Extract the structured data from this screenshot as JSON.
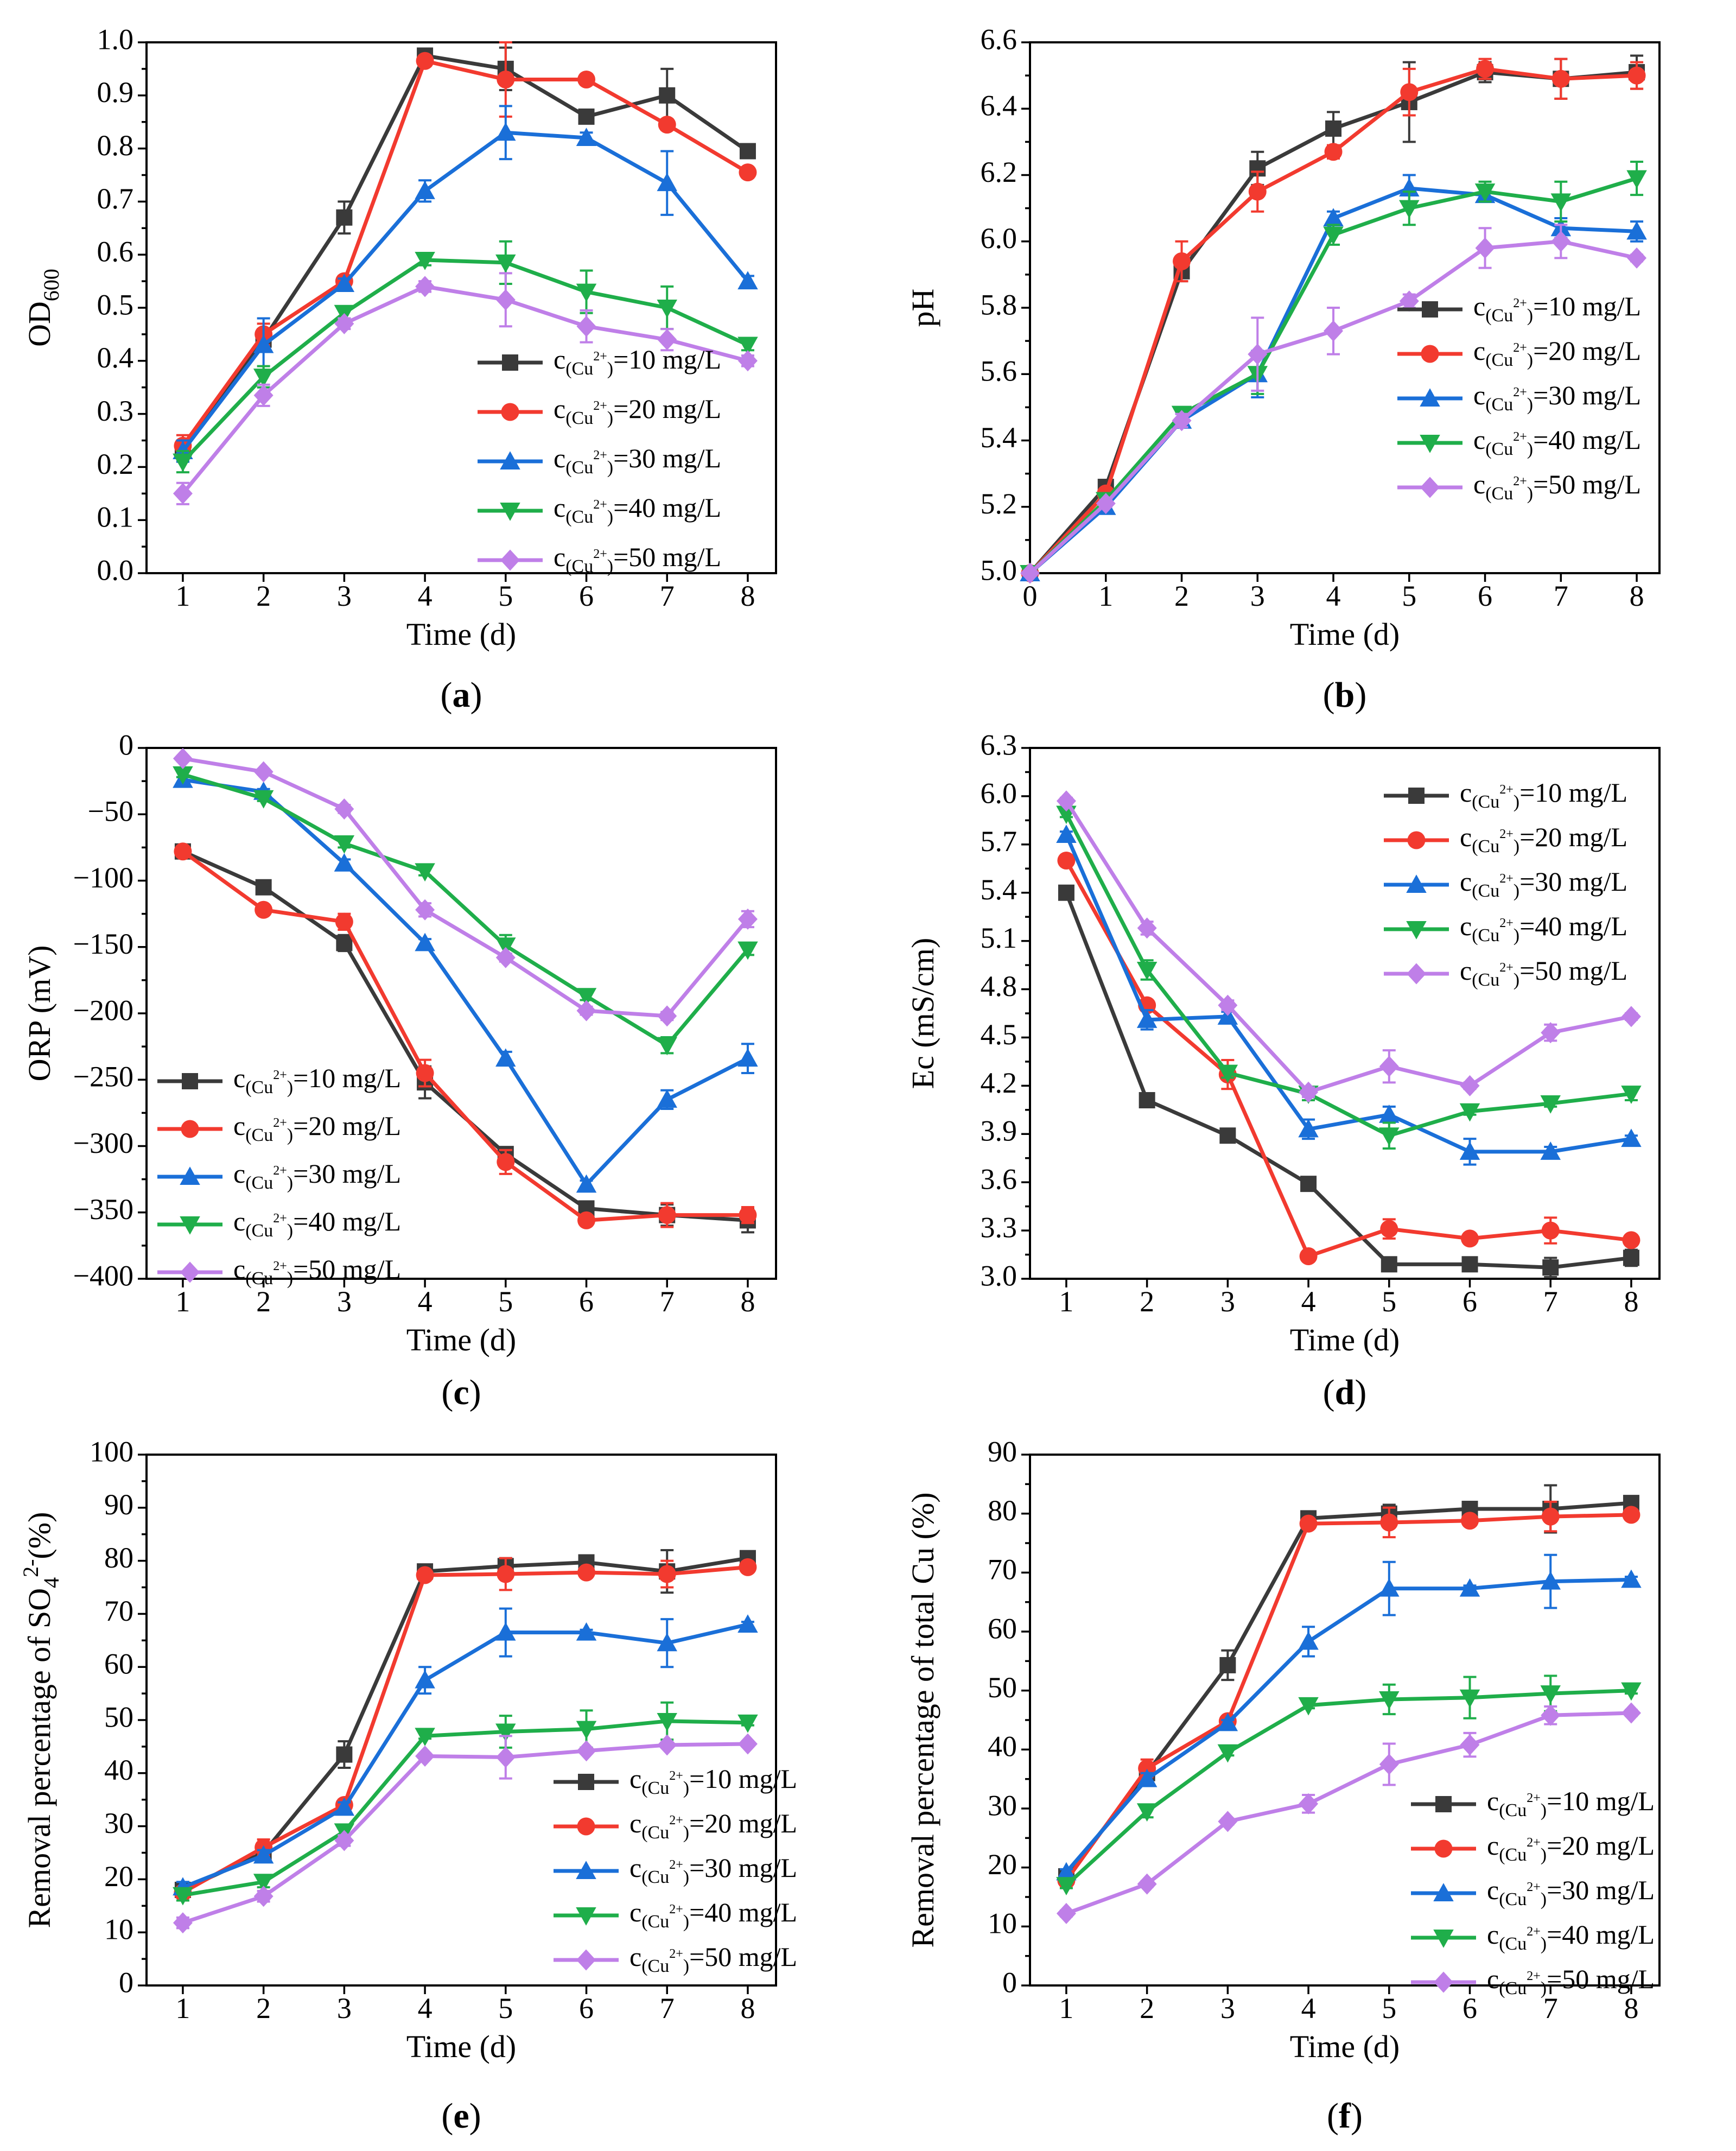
{
  "figure": {
    "legend_labels": {
      "prefix": "c",
      "subscript_base": "(Cu",
      "superscript": "2+",
      "subscript_close": ")",
      "concentrations": [
        "=10 mg/L",
        "=20 mg/L",
        "=30 mg/L",
        "=40 mg/L",
        "=50 mg/L"
      ]
    },
    "series_colors": [
      "#3a3a3a",
      "#f23a2f",
      "#1a6fd8",
      "#1fae4a",
      "#bf7fe8"
    ],
    "series_markers": [
      "square-icon",
      "circle-icon",
      "triangle-up-icon",
      "triangle-down-icon",
      "diamond-icon"
    ]
  },
  "chart_data": [
    {
      "id": "a",
      "type": "line",
      "panel_label": "a",
      "xlabel": "Time (d)",
      "ylabel": {
        "main": "OD",
        "sub": "600"
      },
      "x": [
        1,
        2,
        3,
        4,
        5,
        6,
        7,
        8
      ],
      "xticks": [
        1,
        2,
        3,
        4,
        5,
        6,
        7,
        8
      ],
      "xlim": [
        0.55,
        8.35
      ],
      "ylim": [
        0,
        1.0
      ],
      "yticks": [
        0.0,
        0.1,
        0.2,
        0.3,
        0.4,
        0.5,
        0.6,
        0.7,
        0.8,
        0.9,
        1.0
      ],
      "ytick_labels": [
        "0.0",
        "0.1",
        "0.2",
        "0.3",
        "0.4",
        "0.5",
        "0.6",
        "0.7",
        "0.8",
        "0.9",
        "1.0"
      ],
      "legend_position": "lower-right",
      "series": [
        {
          "name": "10 mg/L",
          "values": [
            0.23,
            0.44,
            0.67,
            0.975,
            0.95,
            0.86,
            0.9,
            0.795
          ],
          "errors": [
            0.02,
            0.02,
            0.03,
            0.008,
            0.04,
            0.01,
            0.05,
            0.01
          ]
        },
        {
          "name": "20 mg/L",
          "values": [
            0.24,
            0.45,
            0.55,
            0.965,
            0.93,
            0.93,
            0.845,
            0.755
          ],
          "errors": [
            0.02,
            0.02,
            0.01,
            0.01,
            0.07,
            0.01,
            0.01,
            0.01
          ]
        },
        {
          "name": "30 mg/L",
          "values": [
            0.23,
            0.43,
            0.545,
            0.72,
            0.83,
            0.82,
            0.735,
            0.55
          ],
          "errors": [
            0.02,
            0.05,
            0.01,
            0.02,
            0.05,
            0.01,
            0.06,
            0.01
          ]
        },
        {
          "name": "40 mg/L",
          "values": [
            0.21,
            0.37,
            0.49,
            0.59,
            0.585,
            0.53,
            0.5,
            0.43
          ],
          "errors": [
            0.02,
            0.02,
            0.01,
            0.01,
            0.04,
            0.04,
            0.04,
            0.01
          ]
        },
        {
          "name": "50 mg/L",
          "values": [
            0.15,
            0.335,
            0.47,
            0.54,
            0.515,
            0.465,
            0.44,
            0.4
          ],
          "errors": [
            0.02,
            0.02,
            0.01,
            0.01,
            0.05,
            0.03,
            0.02,
            0.01
          ]
        }
      ]
    },
    {
      "id": "b",
      "type": "line",
      "panel_label": "b",
      "xlabel": "Time (d)",
      "ylabel": {
        "main": "pH",
        "sub": ""
      },
      "x": [
        0,
        1,
        2,
        3,
        4,
        5,
        6,
        7,
        8
      ],
      "xticks": [
        0,
        1,
        2,
        3,
        4,
        5,
        6,
        7,
        8
      ],
      "xlim": [
        0,
        8.3
      ],
      "ylim": [
        5.0,
        6.6
      ],
      "yticks": [
        5.0,
        5.2,
        5.4,
        5.6,
        5.8,
        6.0,
        6.2,
        6.4,
        6.6
      ],
      "ytick_labels": [
        "5.0",
        "5.2",
        "5.4",
        "5.6",
        "5.8",
        "6.0",
        "6.2",
        "6.4",
        "6.6"
      ],
      "legend_position": "lower-right",
      "series": [
        {
          "name": "10 mg/L",
          "values": [
            5.0,
            5.26,
            5.91,
            6.22,
            6.34,
            6.42,
            6.51,
            6.49,
            6.51
          ],
          "errors": [
            0,
            0.01,
            0.03,
            0.05,
            0.05,
            0.12,
            0.03,
            0.06,
            0.05
          ]
        },
        {
          "name": "20 mg/L",
          "values": [
            5.0,
            5.24,
            5.94,
            6.15,
            6.27,
            6.45,
            6.52,
            6.49,
            6.5
          ],
          "errors": [
            0,
            0.01,
            0.06,
            0.06,
            0.02,
            0.07,
            0.03,
            0.06,
            0.04
          ]
        },
        {
          "name": "30 mg/L",
          "values": [
            5.0,
            5.2,
            5.46,
            5.6,
            6.07,
            6.16,
            6.14,
            6.04,
            6.03
          ],
          "errors": [
            0,
            0.01,
            0.02,
            0.07,
            0.02,
            0.04,
            0.02,
            0.03,
            0.03
          ]
        },
        {
          "name": "40 mg/L",
          "values": [
            5.0,
            5.22,
            5.48,
            5.6,
            6.02,
            6.1,
            6.15,
            6.12,
            6.19
          ],
          "errors": [
            0,
            0.01,
            0.02,
            0.06,
            0.03,
            0.05,
            0.03,
            0.06,
            0.05
          ]
        },
        {
          "name": "50 mg/L",
          "values": [
            5.0,
            5.21,
            5.46,
            5.66,
            5.73,
            5.82,
            5.98,
            6.0,
            5.95
          ],
          "errors": [
            0,
            0.01,
            0.02,
            0.11,
            0.07,
            0.02,
            0.06,
            0.05,
            0.01
          ]
        }
      ]
    },
    {
      "id": "c",
      "type": "line",
      "panel_label": "c",
      "xlabel": "Time (d)",
      "ylabel": {
        "main": "ORP (mV)",
        "sub": ""
      },
      "x": [
        1,
        2,
        3,
        4,
        5,
        6,
        7,
        8
      ],
      "xticks": [
        1,
        2,
        3,
        4,
        5,
        6,
        7,
        8
      ],
      "xlim": [
        0.55,
        8.35
      ],
      "ylim": [
        -400,
        0
      ],
      "yticks": [
        0,
        -50,
        -100,
        -150,
        -200,
        -250,
        -300,
        -350,
        -400
      ],
      "ytick_labels": [
        "0",
        "-50",
        "-100",
        "-150",
        "-200",
        "-250",
        "-300",
        "-350",
        "-400"
      ],
      "legend_position": "lower-left",
      "series": [
        {
          "name": "10 mg/L",
          "values": [
            -78,
            -105,
            -147,
            -252,
            -306,
            -347,
            -352,
            -356
          ],
          "errors": [
            2,
            2,
            6,
            12,
            4,
            2,
            8,
            9
          ]
        },
        {
          "name": "20 mg/L",
          "values": [
            -78,
            -122,
            -131,
            -245,
            -312,
            -356,
            -352,
            -352
          ],
          "errors": [
            2,
            2,
            6,
            10,
            9,
            3,
            9,
            6
          ]
        },
        {
          "name": "30 mg/L",
          "values": [
            -24,
            -33,
            -87,
            -147,
            -234,
            -329,
            -265,
            -234
          ],
          "errors": [
            2,
            2,
            3,
            3,
            5,
            3,
            7,
            11
          ]
        },
        {
          "name": "40 mg/L",
          "values": [
            -20,
            -38,
            -72,
            -93,
            -149,
            -187,
            -224,
            -152
          ],
          "errors": [
            2,
            2,
            3,
            3,
            8,
            3,
            6,
            4
          ]
        },
        {
          "name": "50 mg/L",
          "values": [
            -8,
            -18,
            -46,
            -122,
            -158,
            -198,
            -202,
            -129
          ],
          "errors": [
            2,
            2,
            3,
            5,
            3,
            3,
            3,
            6
          ]
        }
      ]
    },
    {
      "id": "d",
      "type": "line",
      "panel_label": "d",
      "xlabel": "Time (d)",
      "ylabel": {
        "main": "Ec (mS/cm)",
        "sub": ""
      },
      "x": [
        1,
        2,
        3,
        4,
        5,
        6,
        7,
        8
      ],
      "xticks": [
        1,
        2,
        3,
        4,
        5,
        6,
        7,
        8
      ],
      "xlim": [
        0.55,
        8.35
      ],
      "ylim": [
        3.0,
        6.3
      ],
      "yticks": [
        3.0,
        3.3,
        3.6,
        3.9,
        4.2,
        4.5,
        4.8,
        5.1,
        5.4,
        5.7,
        6.0,
        6.3
      ],
      "ytick_labels": [
        "3.0",
        "3.3",
        "3.6",
        "3.9",
        "4.2",
        "4.5",
        "4.8",
        "5.1",
        "5.4",
        "5.7",
        "6.0",
        "6.3"
      ],
      "legend_position": "top-right",
      "series": [
        {
          "name": "10 mg/L",
          "values": [
            5.4,
            4.11,
            3.89,
            3.59,
            3.09,
            3.09,
            3.07,
            3.13
          ],
          "errors": [
            0.02,
            0.02,
            0.02,
            0.02,
            0.02,
            0.02,
            0.06,
            0.05
          ]
        },
        {
          "name": "20 mg/L",
          "values": [
            5.6,
            4.7,
            4.27,
            3.14,
            3.31,
            3.25,
            3.3,
            3.24
          ],
          "errors": [
            0.02,
            0.02,
            0.09,
            0.02,
            0.06,
            0.02,
            0.08,
            0.03
          ]
        },
        {
          "name": "30 mg/L",
          "values": [
            5.76,
            4.61,
            4.63,
            3.93,
            4.02,
            3.79,
            3.79,
            3.87
          ],
          "errors": [
            0.02,
            0.06,
            0.03,
            0.06,
            0.05,
            0.08,
            0.03,
            0.02
          ]
        },
        {
          "name": "40 mg/L",
          "values": [
            5.89,
            4.92,
            4.28,
            4.15,
            3.89,
            4.04,
            4.09,
            4.15
          ],
          "errors": [
            0.02,
            0.06,
            0.03,
            0.04,
            0.08,
            0.02,
            0.02,
            0.04
          ]
        },
        {
          "name": "50 mg/L",
          "values": [
            5.97,
            5.18,
            4.7,
            4.16,
            4.32,
            4.2,
            4.53,
            4.63
          ],
          "errors": [
            0.02,
            0.04,
            0.03,
            0.03,
            0.1,
            0.02,
            0.05,
            0.02
          ]
        }
      ]
    },
    {
      "id": "e",
      "type": "line",
      "panel_label": "e",
      "xlabel": "Time (d)",
      "ylabel": {
        "main": "Removal percentage of SO",
        "sub": "4",
        "sup": "2-",
        "tail": "(%)"
      },
      "x": [
        1,
        2,
        3,
        4,
        5,
        6,
        7,
        8
      ],
      "xticks": [
        1,
        2,
        3,
        4,
        5,
        6,
        7,
        8
      ],
      "xlim": [
        0.55,
        8.35
      ],
      "ylim": [
        0,
        100
      ],
      "yticks": [
        0,
        10,
        20,
        30,
        40,
        50,
        60,
        70,
        80,
        90,
        100
      ],
      "ytick_labels": [
        "0",
        "10",
        "20",
        "30",
        "40",
        "50",
        "60",
        "70",
        "80",
        "90",
        "100"
      ],
      "legend_position": "lower-right",
      "series": [
        {
          "name": "10 mg/L",
          "values": [
            18,
            25,
            43.5,
            78,
            79,
            79.7,
            78,
            80.5
          ],
          "errors": [
            1,
            1,
            2.5,
            0.5,
            1.5,
            0.5,
            4,
            0.5
          ]
        },
        {
          "name": "20 mg/L",
          "values": [
            17.5,
            26,
            34,
            77.3,
            77.5,
            77.8,
            77.5,
            78.8
          ],
          "errors": [
            1,
            1.5,
            1,
            0.5,
            3,
            0.5,
            2.5,
            0.5
          ]
        },
        {
          "name": "30 mg/L",
          "values": [
            18.5,
            24.5,
            33.5,
            57.5,
            66.5,
            66.5,
            64.5,
            68
          ],
          "errors": [
            1,
            1,
            1,
            2.5,
            4.5,
            0.5,
            4.5,
            0.5
          ]
        },
        {
          "name": "40 mg/L",
          "values": [
            17,
            19.5,
            29,
            47,
            47.8,
            48.3,
            49.8,
            49.5
          ],
          "errors": [
            1,
            1,
            1,
            0.5,
            3,
            3.5,
            3.5,
            0.5
          ]
        },
        {
          "name": "50 mg/L",
          "values": [
            11.8,
            16.8,
            27.3,
            43.2,
            43,
            44.2,
            45.3,
            45.5
          ],
          "errors": [
            1,
            1,
            1,
            0.5,
            4,
            0.5,
            0.5,
            0.5
          ]
        }
      ]
    },
    {
      "id": "f",
      "type": "line",
      "panel_label": "f",
      "xlabel": "Time (d)",
      "ylabel": {
        "main": "Removal percentage of total Cu (%)",
        "sub": ""
      },
      "x": [
        1,
        2,
        3,
        4,
        5,
        6,
        7,
        8
      ],
      "xticks": [
        1,
        2,
        3,
        4,
        5,
        6,
        7,
        8
      ],
      "xlim": [
        0.55,
        8.35
      ],
      "ylim": [
        0,
        90
      ],
      "yticks": [
        0,
        10,
        20,
        30,
        40,
        50,
        60,
        70,
        80,
        90
      ],
      "ytick_labels": [
        "0",
        "10",
        "20",
        "30",
        "40",
        "50",
        "60",
        "70",
        "80",
        "90"
      ],
      "legend_position": "lower-right",
      "series": [
        {
          "name": "10 mg/L",
          "values": [
            18.5,
            36,
            54.3,
            79.2,
            80,
            80.8,
            80.8,
            81.8
          ],
          "errors": [
            0.5,
            1,
            2.5,
            0.5,
            1.5,
            0.5,
            4,
            0.5
          ]
        },
        {
          "name": "20 mg/L",
          "values": [
            17.8,
            36.8,
            44.8,
            78.3,
            78.5,
            78.8,
            79.5,
            79.8
          ],
          "errors": [
            0.5,
            1.5,
            0.5,
            0.5,
            2.5,
            0.5,
            2.5,
            0.5
          ]
        },
        {
          "name": "30 mg/L",
          "values": [
            19.2,
            35,
            44.5,
            58.3,
            67.3,
            67.3,
            68.5,
            68.8
          ],
          "errors": [
            0.5,
            1,
            0.5,
            2.5,
            4.5,
            0.5,
            4.5,
            0.5
          ]
        },
        {
          "name": "40 mg/L",
          "values": [
            17,
            29.5,
            39.5,
            47.5,
            48.5,
            48.8,
            49.5,
            50
          ],
          "errors": [
            0.5,
            1,
            0.5,
            0.5,
            2.5,
            3.5,
            3,
            0.5
          ]
        },
        {
          "name": "50 mg/L",
          "values": [
            12.2,
            17.2,
            27.8,
            30.8,
            37.5,
            40.8,
            45.8,
            46.2
          ],
          "errors": [
            0.5,
            0.5,
            0.5,
            1.5,
            3.5,
            2,
            1.5,
            0.5
          ]
        }
      ]
    }
  ]
}
